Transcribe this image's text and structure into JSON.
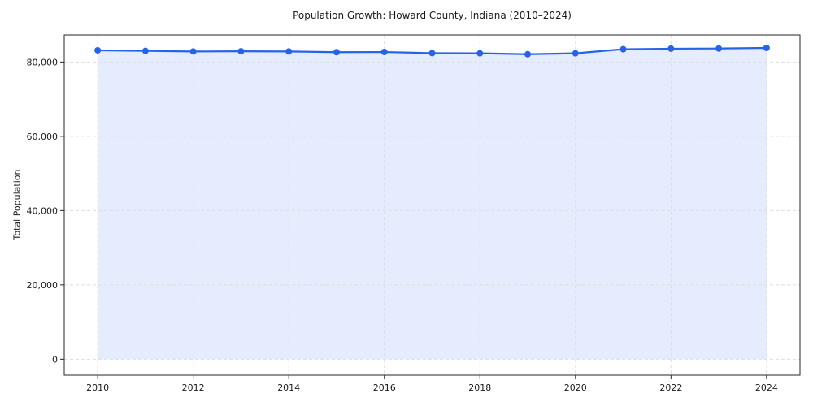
{
  "chart_data": {
    "type": "line",
    "title": "Population Growth: Howard County, Indiana (2010–2024)",
    "xlabel": "",
    "ylabel": "Total Population",
    "x": [
      2010,
      2011,
      2012,
      2013,
      2014,
      2015,
      2016,
      2017,
      2018,
      2019,
      2020,
      2021,
      2022,
      2023,
      2024
    ],
    "series": [
      {
        "name": "Total Population",
        "values": [
          83150,
          83000,
          82850,
          82900,
          82850,
          82650,
          82700,
          82400,
          82350,
          82100,
          82350,
          83450,
          83600,
          83650,
          83800
        ]
      }
    ],
    "x_ticks": [
      2010,
      2012,
      2014,
      2016,
      2018,
      2020,
      2022,
      2024
    ],
    "x_tick_labels": [
      "2010",
      "2012",
      "2014",
      "2016",
      "2018",
      "2020",
      "2022",
      "2024"
    ],
    "y_ticks": [
      0,
      20000,
      40000,
      60000,
      80000
    ],
    "y_tick_labels": [
      "0",
      "20,000",
      "40,000",
      "60,000",
      "80,000"
    ],
    "xlim": [
      2009.3,
      2024.7
    ],
    "ylim": [
      -4300,
      87300
    ],
    "grid": true,
    "grid_style": "dashed",
    "legend_position": "none",
    "marker": "circle",
    "area_fill": true,
    "colors": {
      "line": "#2563eb",
      "marker": "#2563eb",
      "fill": "#2563eb",
      "grid": "#dedede",
      "spine": "#262626",
      "text": "#1a1a1a",
      "background": "#ffffff"
    },
    "fill_opacity": 0.12
  }
}
